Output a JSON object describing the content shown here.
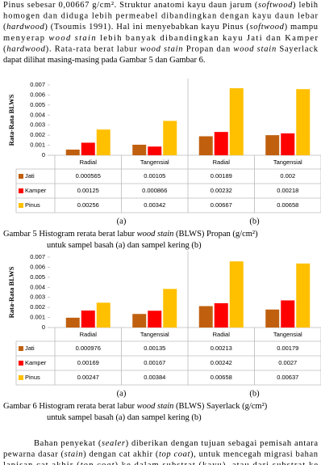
{
  "paragraphs": [
    [
      [
        "Pinus sebesar 0,00667 g/cm². Struktur anatomi kayu daun jarum (",
        "softwood",
        ") lebih"
      ],
      [
        "homogen dan diduga lebih permeabel dibandingkan dengan kayu daun lebar"
      ],
      [
        "(",
        "hardwood",
        ") (Tsoumis 1991). Hal ini menyebabkan kayu Pinus (",
        "softwood",
        ") mampu"
      ],
      [
        "menyerap ",
        "wood stain",
        " lebih banyak dibandingkan kayu Jati dan Kamper"
      ],
      [
        "(",
        "hardwood",
        "). Rata-rata berat labur ",
        "wood stain",
        " Propan dan ",
        "wood stain",
        " Sayerlack"
      ],
      [
        "dapat dilihat masing-masing pada Gambar 5 dan Gambar 6."
      ]
    ],
    [
      [
        "Bahan penyekat (",
        "sealer",
        ") diberikan dengan tujuan sebagai pemisah antara"
      ],
      [
        "pewarna dasar (",
        "stain",
        ") dengan cat akhir (",
        "top coat",
        "), untuk mencegah migrasi bahan"
      ],
      [
        "lapisan cat akhir (",
        "top coat",
        ") ke dalam substrat (kayu), atau dari substrat ke"
      ]
    ]
  ],
  "chart_data": [
    {
      "type": "bar",
      "y_label": "Rata-Rata BLWS",
      "categories": [
        "Radial",
        "Tangensial",
        "Radial",
        "Tangensial"
      ],
      "series": [
        {
          "name": "Jati",
          "color": "#c0600f",
          "values": [
            0.000565,
            0.00105,
            0.00189,
            0.002
          ]
        },
        {
          "name": "Kamper",
          "color": "#ff0000",
          "values": [
            0.00125,
            0.000866,
            0.00232,
            0.00218
          ]
        },
        {
          "name": "Pinus",
          "color": "#ffc000",
          "values": [
            0.00256,
            0.00342,
            0.00667,
            0.00658
          ]
        }
      ],
      "ylim": [
        0,
        0.007
      ],
      "yticks": [
        0,
        0.001,
        0.002,
        0.003,
        0.004,
        0.005,
        0.006,
        0.007
      ],
      "panel_labels": [
        "(a)",
        "(b)"
      ],
      "caption": [
        [
          "Gambar 5  Histogram rerata berat labur ",
          "wood stain",
          " (BLWS) Propan (g/cm²)"
        ],
        [
          "untuk sampel basah (a) dan sampel kering (b)"
        ]
      ]
    },
    {
      "type": "bar",
      "y_label": "Rata-Rata BLWS",
      "categories": [
        "Radial",
        "Tangensial",
        "Radial",
        "Tangensial"
      ],
      "series": [
        {
          "name": "Jati",
          "color": "#c0600f",
          "values": [
            0.000976,
            0.00135,
            0.00213,
            0.00179
          ]
        },
        {
          "name": "Kamper",
          "color": "#ff0000",
          "values": [
            0.00169,
            0.00167,
            0.00242,
            0.0027
          ]
        },
        {
          "name": "Pinus",
          "color": "#ffc000",
          "values": [
            0.00247,
            0.00384,
            0.00658,
            0.00637
          ]
        }
      ],
      "ylim": [
        0,
        0.007
      ],
      "yticks": [
        0,
        0.001,
        0.002,
        0.003,
        0.004,
        0.005,
        0.006,
        0.007
      ],
      "panel_labels": [
        "(a)",
        "(b)"
      ],
      "caption": [
        [
          "Gambar 6  Histogram rerata berat labur ",
          "wood stain",
          " (BLWS) Sayerlack (g/cm²)"
        ],
        [
          "untuk sampel basah (a) dan sampel kering (b)"
        ]
      ]
    }
  ]
}
